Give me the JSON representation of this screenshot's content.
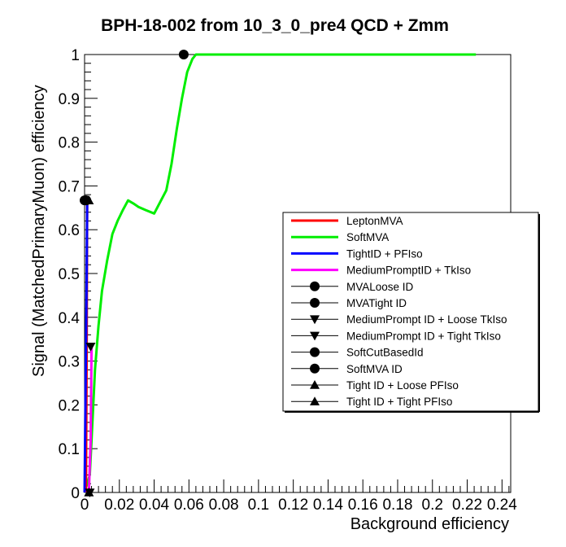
{
  "chart_data": {
    "type": "line",
    "title": "BPH-18-002 from 10_3_0_pre4 QCD + Zmm",
    "xlabel": "Background efficiency",
    "ylabel": "Signal (MatchedPrimaryMuon) efficiency",
    "xlim": [
      0,
      0.245
    ],
    "ylim": [
      0,
      1.0
    ],
    "xticks": [
      0,
      0.02,
      0.04,
      0.06,
      0.08,
      0.1,
      0.12,
      0.14,
      0.16,
      0.18,
      0.2,
      0.22,
      0.24
    ],
    "xtick_labels": [
      "0",
      "0.02",
      "0.04",
      "0.06",
      "0.08",
      "0.1",
      "0.12",
      "0.14",
      "0.16",
      "0.18",
      "0.2",
      "0.22",
      "0.24"
    ],
    "yticks": [
      0,
      0.1,
      0.2,
      0.3,
      0.4,
      0.5,
      0.6,
      0.7,
      0.8,
      0.9,
      1
    ],
    "ytick_labels": [
      "0",
      "0.1",
      "0.2",
      "0.3",
      "0.4",
      "0.5",
      "0.6",
      "0.7",
      "0.8",
      "0.9",
      "1"
    ],
    "grid": false,
    "legend_position": "right-middle",
    "series": [
      {
        "name": "LeptonMVA",
        "kind": "line",
        "color": "#ff0000",
        "x": [
          0.0008,
          0.0012,
          0.0015
        ],
        "y": [
          0.0,
          0.33,
          0.667
        ]
      },
      {
        "name": "SoftMVA",
        "kind": "line",
        "color": "#00ee00",
        "x": [
          0.0,
          0.003,
          0.004,
          0.006,
          0.008,
          0.01,
          0.013,
          0.016,
          0.019,
          0.022,
          0.025,
          0.028,
          0.031,
          0.035,
          0.04,
          0.047,
          0.05,
          0.053,
          0.056,
          0.059,
          0.062,
          0.064,
          0.066,
          0.08,
          0.12,
          0.16,
          0.2,
          0.225
        ],
        "y": [
          0.0,
          0.04,
          0.12,
          0.28,
          0.38,
          0.46,
          0.53,
          0.59,
          0.62,
          0.645,
          0.667,
          0.66,
          0.652,
          0.645,
          0.637,
          0.69,
          0.75,
          0.83,
          0.9,
          0.96,
          0.99,
          1.0,
          1.0,
          1.0,
          1.0,
          1.0,
          1.0,
          1.0
        ]
      },
      {
        "name": "TightID + PFIso",
        "kind": "line",
        "color": "#0000ff",
        "x": [
          0.0,
          0.0008,
          0.0012,
          0.0015
        ],
        "y": [
          0.0,
          0.33,
          0.5,
          0.667
        ]
      },
      {
        "name": "MediumPromptID + TkIso",
        "kind": "line",
        "color": "#ff00ff",
        "x": [
          0.0015,
          0.0025,
          0.0035,
          0.004
        ],
        "y": [
          0.0,
          0.0,
          0.12,
          0.333
        ]
      },
      {
        "name": "MVALoose ID",
        "kind": "marker",
        "marker": "circle",
        "x": [
          0.001
        ],
        "y": [
          0.667
        ]
      },
      {
        "name": "MVATight ID",
        "kind": "marker",
        "marker": "circle",
        "x": [
          0.057
        ],
        "y": [
          1.0
        ]
      },
      {
        "name": "MediumPrompt ID + Loose TkIso",
        "kind": "marker",
        "marker": "triangle-down",
        "x": [
          0.003
        ],
        "y": [
          0.0
        ]
      },
      {
        "name": "MediumPrompt ID + Tight TkIso",
        "kind": "marker",
        "marker": "triangle-down",
        "x": [
          0.0035
        ],
        "y": [
          0.333
        ]
      },
      {
        "name": "SoftCutBasedId",
        "kind": "marker",
        "marker": "circle",
        "x": [
          0.0
        ],
        "y": [
          0.667
        ]
      },
      {
        "name": "SoftMVA ID",
        "kind": "marker",
        "marker": "circle",
        "x": [
          0.0005
        ],
        "y": [
          0.667
        ]
      },
      {
        "name": "Tight ID + Loose PFIso",
        "kind": "marker",
        "marker": "triangle-up",
        "x": [
          0.0025
        ],
        "y": [
          0.667
        ]
      },
      {
        "name": "Tight ID + Tight PFIso",
        "kind": "marker",
        "marker": "triangle-up",
        "x": [
          0.0025
        ],
        "y": [
          0.0
        ]
      }
    ]
  }
}
